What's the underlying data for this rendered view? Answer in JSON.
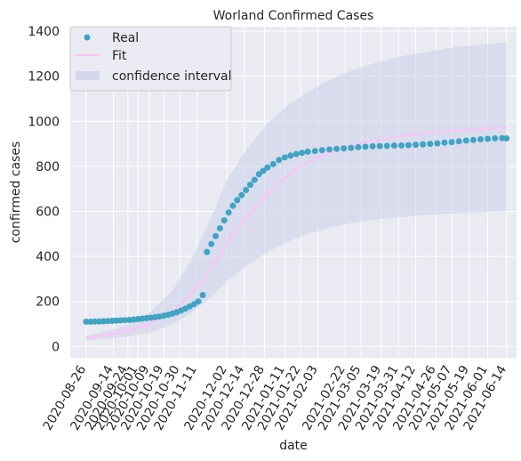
{
  "chart_data": {
    "type": "scatter",
    "title": "Worland Confirmed Cases",
    "xlabel": "date",
    "ylabel": "confirmed cases",
    "x_ticks": [
      "2020-08-26",
      "2020-09-14",
      "2020-09-24",
      "2020-10-01",
      "2020-10-09",
      "2020-10-19",
      "2020-10-30",
      "2020-11-11",
      "2020-12-02",
      "2020-12-14",
      "2020-12-28",
      "2021-01-11",
      "2021-01-22",
      "2021-02-03",
      "2021-02-22",
      "2021-03-05",
      "2021-03-19",
      "2021-03-31",
      "2021-04-12",
      "2021-04-26",
      "2021-05-07",
      "2021-05-19",
      "2021-06-01",
      "2021-06-14"
    ],
    "y_ticks": [
      0,
      200,
      400,
      600,
      800,
      1000,
      1200,
      1400
    ],
    "xlim": [
      "2020-08-15",
      "2021-06-21"
    ],
    "ylim": [
      -50,
      1420
    ],
    "grid": true,
    "legend_position": "top-left",
    "legend": [
      "Real",
      "Fit",
      "confidence interval"
    ],
    "colors": {
      "real": "#3fa4c2",
      "fit": "#ffc1f6",
      "confidence": "#c8cfe8",
      "background": "#eaeaf2",
      "grid": "#ffffff"
    },
    "series": [
      {
        "name": "Real",
        "kind": "scatter",
        "points": [
          [
            "2020-08-26",
            110
          ],
          [
            "2020-08-29",
            110
          ],
          [
            "2020-09-01",
            111
          ],
          [
            "2020-09-04",
            111
          ],
          [
            "2020-09-07",
            112
          ],
          [
            "2020-09-10",
            113
          ],
          [
            "2020-09-13",
            114
          ],
          [
            "2020-09-16",
            115
          ],
          [
            "2020-09-19",
            116
          ],
          [
            "2020-09-22",
            117
          ],
          [
            "2020-09-25",
            118
          ],
          [
            "2020-09-28",
            120
          ],
          [
            "2020-10-01",
            122
          ],
          [
            "2020-10-04",
            124
          ],
          [
            "2020-10-07",
            126
          ],
          [
            "2020-10-10",
            128
          ],
          [
            "2020-10-13",
            130
          ],
          [
            "2020-10-16",
            133
          ],
          [
            "2020-10-19",
            137
          ],
          [
            "2020-10-22",
            141
          ],
          [
            "2020-10-25",
            146
          ],
          [
            "2020-10-28",
            152
          ],
          [
            "2020-10-31",
            160
          ],
          [
            "2020-11-03",
            168
          ],
          [
            "2020-11-06",
            178
          ],
          [
            "2020-11-09",
            188
          ],
          [
            "2020-11-12",
            200
          ],
          [
            "2020-11-15",
            228
          ],
          [
            "2020-11-18",
            420
          ],
          [
            "2020-11-21",
            455
          ],
          [
            "2020-11-24",
            490
          ],
          [
            "2020-11-27",
            525
          ],
          [
            "2020-11-30",
            560
          ],
          [
            "2020-12-03",
            595
          ],
          [
            "2020-12-06",
            625
          ],
          [
            "2020-12-09",
            650
          ],
          [
            "2020-12-12",
            672
          ],
          [
            "2020-12-15",
            695
          ],
          [
            "2020-12-18",
            718
          ],
          [
            "2020-12-21",
            740
          ],
          [
            "2020-12-24",
            765
          ],
          [
            "2020-12-27",
            780
          ],
          [
            "2020-12-30",
            795
          ],
          [
            "2021-01-03",
            810
          ],
          [
            "2021-01-07",
            828
          ],
          [
            "2021-01-11",
            840
          ],
          [
            "2021-01-15",
            848
          ],
          [
            "2021-01-19",
            855
          ],
          [
            "2021-01-23",
            860
          ],
          [
            "2021-01-27",
            865
          ],
          [
            "2021-02-01",
            868
          ],
          [
            "2021-02-06",
            872
          ],
          [
            "2021-02-11",
            875
          ],
          [
            "2021-02-16",
            878
          ],
          [
            "2021-02-21",
            880
          ],
          [
            "2021-02-26",
            882
          ],
          [
            "2021-03-03",
            885
          ],
          [
            "2021-03-08",
            887
          ],
          [
            "2021-03-13",
            889
          ],
          [
            "2021-03-18",
            890
          ],
          [
            "2021-03-23",
            891
          ],
          [
            "2021-03-28",
            892
          ],
          [
            "2021-04-02",
            893
          ],
          [
            "2021-04-07",
            894
          ],
          [
            "2021-04-12",
            896
          ],
          [
            "2021-04-17",
            898
          ],
          [
            "2021-04-22",
            900
          ],
          [
            "2021-04-27",
            902
          ],
          [
            "2021-05-02",
            905
          ],
          [
            "2021-05-07",
            908
          ],
          [
            "2021-05-12",
            911
          ],
          [
            "2021-05-17",
            914
          ],
          [
            "2021-05-22",
            917
          ],
          [
            "2021-05-27",
            920
          ],
          [
            "2021-06-01",
            922
          ],
          [
            "2021-06-06",
            924
          ],
          [
            "2021-06-11",
            925
          ],
          [
            "2021-06-14",
            924
          ]
        ]
      },
      {
        "name": "Fit",
        "kind": "line",
        "points": [
          [
            "2020-08-26",
            38
          ],
          [
            "2020-09-10",
            52
          ],
          [
            "2020-09-24",
            70
          ],
          [
            "2020-10-09",
            100
          ],
          [
            "2020-10-24",
            150
          ],
          [
            "2020-11-05",
            220
          ],
          [
            "2020-11-18",
            320
          ],
          [
            "2020-12-02",
            460
          ],
          [
            "2020-12-16",
            580
          ],
          [
            "2020-12-30",
            680
          ],
          [
            "2021-01-13",
            760
          ],
          [
            "2021-01-27",
            820
          ],
          [
            "2021-02-10",
            860
          ],
          [
            "2021-02-24",
            890
          ],
          [
            "2021-03-10",
            910
          ],
          [
            "2021-03-24",
            925
          ],
          [
            "2021-04-07",
            938
          ],
          [
            "2021-04-21",
            948
          ],
          [
            "2021-05-05",
            956
          ],
          [
            "2021-05-19",
            963
          ],
          [
            "2021-06-02",
            968
          ],
          [
            "2021-06-14",
            972
          ]
        ]
      },
      {
        "name": "confidence interval",
        "kind": "band",
        "points": [
          [
            "2020-08-26",
            28,
            48
          ],
          [
            "2020-09-10",
            35,
            68
          ],
          [
            "2020-09-24",
            45,
            98
          ],
          [
            "2020-10-09",
            62,
            150
          ],
          [
            "2020-10-24",
            95,
            240
          ],
          [
            "2020-11-05",
            140,
            360
          ],
          [
            "2020-11-18",
            205,
            530
          ],
          [
            "2020-12-02",
            290,
            740
          ],
          [
            "2020-12-16",
            360,
            880
          ],
          [
            "2020-12-30",
            420,
            990
          ],
          [
            "2021-01-13",
            465,
            1070
          ],
          [
            "2021-01-27",
            500,
            1130
          ],
          [
            "2021-02-10",
            525,
            1180
          ],
          [
            "2021-02-24",
            545,
            1220
          ],
          [
            "2021-03-10",
            560,
            1250
          ],
          [
            "2021-03-24",
            570,
            1275
          ],
          [
            "2021-04-07",
            578,
            1295
          ],
          [
            "2021-04-21",
            585,
            1310
          ],
          [
            "2021-05-05",
            590,
            1325
          ],
          [
            "2021-05-19",
            594,
            1335
          ],
          [
            "2021-06-02",
            597,
            1343
          ],
          [
            "2021-06-14",
            600,
            1350
          ]
        ]
      }
    ]
  }
}
